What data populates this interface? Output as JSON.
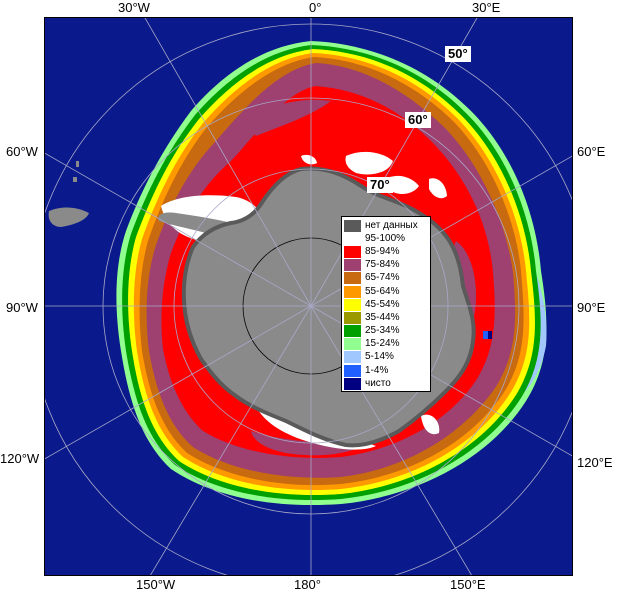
{
  "map": {
    "colors": {
      "ocean": "#0a1a8c",
      "continent": "#8a8a8a",
      "no_data": "#5a5a5a",
      "ice_95_100": "#ffffff",
      "ice_85_94": "#ff0000",
      "ice_75_84": "#9e4070",
      "ice_65_74": "#c86a10",
      "ice_55_64": "#ff9900",
      "ice_45_54": "#ffff00",
      "ice_35_44": "#9a9a00",
      "ice_25_34": "#00a000",
      "ice_15_24": "#90ff90",
      "ice_5_14": "#a0c8ff",
      "ice_1_4": "#2060ff",
      "clear": "#000080"
    },
    "longitude_labels": {
      "top_30w": "30°W",
      "top_0": "0°",
      "top_30e": "30°E",
      "left_60w": "60°W",
      "right_60e": "60°E",
      "left_90w": "90°W",
      "right_90e": "90°E",
      "left_120w": "120°W",
      "right_120e": "120°E",
      "bottom_150w": "150°W",
      "bottom_180": "180°",
      "bottom_150e": "150°E"
    },
    "latitude_labels": {
      "lat_50": "50°",
      "lat_60": "60°",
      "lat_70": "70°"
    }
  },
  "legend": {
    "items": [
      {
        "label": "нет данных",
        "color": "#5a5a5a"
      },
      {
        "label": "95-100%",
        "color": "#ffffff"
      },
      {
        "label": "85-94%",
        "color": "#ff0000"
      },
      {
        "label": "75-84%",
        "color": "#9e4070"
      },
      {
        "label": "65-74%",
        "color": "#c86a10"
      },
      {
        "label": "55-64%",
        "color": "#ff9900"
      },
      {
        "label": "45-54%",
        "color": "#ffff00"
      },
      {
        "label": "35-44%",
        "color": "#9a9a00"
      },
      {
        "label": "25-34%",
        "color": "#00a000"
      },
      {
        "label": "15-24%",
        "color": "#90ff90"
      },
      {
        "label": "5-14%",
        "color": "#a0c8ff"
      },
      {
        "label": "1-4%",
        "color": "#2060ff"
      },
      {
        "label": "чисто",
        "color": "#000080"
      }
    ]
  }
}
